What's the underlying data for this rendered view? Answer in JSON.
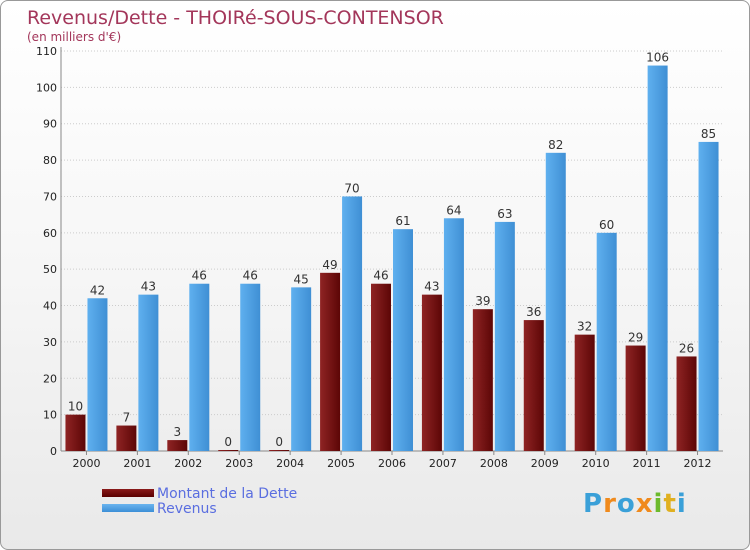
{
  "chart_data": {
    "type": "bar",
    "title": "Revenus/Dette - THOIRé-SOUS-CONTENSOR",
    "subtitle": "(en milliers d'€)",
    "categories": [
      "2000",
      "2001",
      "2002",
      "2003",
      "2004",
      "2005",
      "2006",
      "2007",
      "2008",
      "2009",
      "2010",
      "2011",
      "2012"
    ],
    "series": [
      {
        "name": "Montant de la Dette",
        "color": "#6e0f0f",
        "values": [
          10,
          7,
          3,
          0,
          0,
          49,
          46,
          43,
          39,
          36,
          32,
          29,
          26
        ]
      },
      {
        "name": "Revenus",
        "color": "#4f9fe3",
        "values": [
          42,
          43,
          46,
          46,
          45,
          70,
          61,
          64,
          63,
          82,
          60,
          106,
          85
        ]
      }
    ],
    "yticks": [
      0,
      10,
      20,
      30,
      40,
      50,
      60,
      70,
      80,
      90,
      100,
      110
    ],
    "ylim": [
      0,
      110
    ],
    "grid": true,
    "legend": "bottom-left"
  },
  "logo": {
    "letters": [
      {
        "ch": "P",
        "color": "#3aa0d8"
      },
      {
        "ch": "r",
        "color": "#f08a1c"
      },
      {
        "ch": "o",
        "color": "#3aa0d8"
      },
      {
        "ch": "x",
        "color": "#f08a1c"
      },
      {
        "ch": "i",
        "color": "#6cba2c"
      },
      {
        "ch": "t",
        "color": "#e0b020"
      },
      {
        "ch": "i",
        "color": "#3aa0d8"
      }
    ]
  }
}
